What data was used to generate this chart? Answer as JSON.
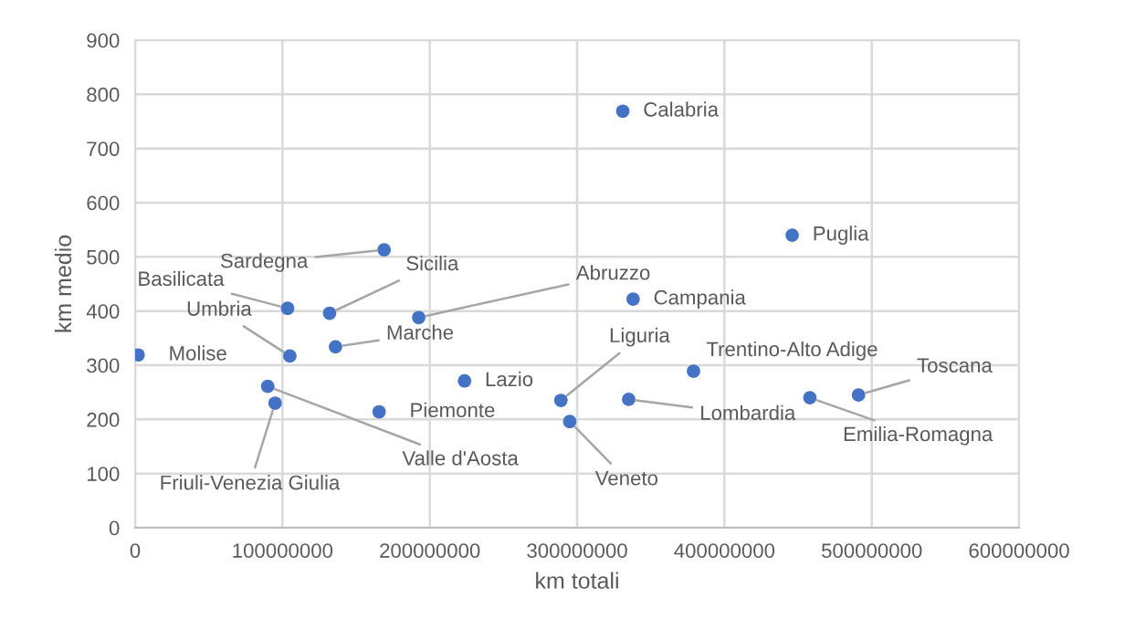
{
  "chart_data": {
    "type": "scatter",
    "xlabel": "km totali",
    "ylabel": "km medio",
    "series": [
      {
        "color": "#4472c4",
        "x": [
          331000000,
          446000000,
          338000000,
          2000000,
          223600000,
          165600000,
          379000000,
          169000000,
          103500000,
          132000000,
          192500000,
          105000000,
          136000000,
          90000000,
          95000000,
          289000000,
          295000000,
          335000000,
          458000000,
          491000000
        ],
        "values": [
          769,
          540,
          422,
          319,
          271,
          214,
          289,
          513,
          405,
          396,
          388,
          317,
          334,
          261,
          230,
          235,
          196,
          237,
          240,
          245
        ]
      }
    ],
    "annotations": [
      {
        "text": "Calabria",
        "x": 331000000,
        "y": 769
      },
      {
        "text": "Puglia",
        "x": 446000000,
        "y": 540
      },
      {
        "text": "Campania",
        "x": 338000000,
        "y": 422
      },
      {
        "text": "Molise",
        "x": 2000000,
        "y": 319
      },
      {
        "text": "Lazio",
        "x": 223600000,
        "y": 271
      },
      {
        "text": "Piemonte",
        "x": 165600000,
        "y": 214
      },
      {
        "text": "Trentino-Alto Adige",
        "x": 379000000,
        "y": 289
      },
      {
        "text": "Sardegna",
        "x": 169000000,
        "y": 513
      },
      {
        "text": "Basilicata",
        "x": 103500000,
        "y": 405
      },
      {
        "text": "Sicilia",
        "x": 132000000,
        "y": 396
      },
      {
        "text": "Abruzzo",
        "x": 192500000,
        "y": 388
      },
      {
        "text": "Umbria",
        "x": 105000000,
        "y": 317
      },
      {
        "text": "Marche",
        "x": 136000000,
        "y": 334
      },
      {
        "text": "Valle d'Aosta",
        "x": 90000000,
        "y": 261
      },
      {
        "text": "Friuli-Venezia Giulia",
        "x": 95000000,
        "y": 230
      },
      {
        "text": "Liguria",
        "x": 289000000,
        "y": 235
      },
      {
        "text": "Veneto",
        "x": 295000000,
        "y": 196
      },
      {
        "text": "Lombardia",
        "x": 335000000,
        "y": 237
      },
      {
        "text": "Emilia-Romagna",
        "x": 458000000,
        "y": 240
      },
      {
        "text": "Toscana",
        "x": 491000000,
        "y": 245
      }
    ],
    "xlim": [
      0,
      600000000
    ],
    "xticks": [
      0,
      100000000,
      200000000,
      300000000,
      400000000,
      500000000,
      600000000
    ],
    "ylim": [
      0,
      900
    ],
    "yticks": [
      0,
      100,
      200,
      300,
      400,
      500,
      600,
      700,
      800,
      900
    ],
    "grid": true,
    "marker": "circle"
  }
}
